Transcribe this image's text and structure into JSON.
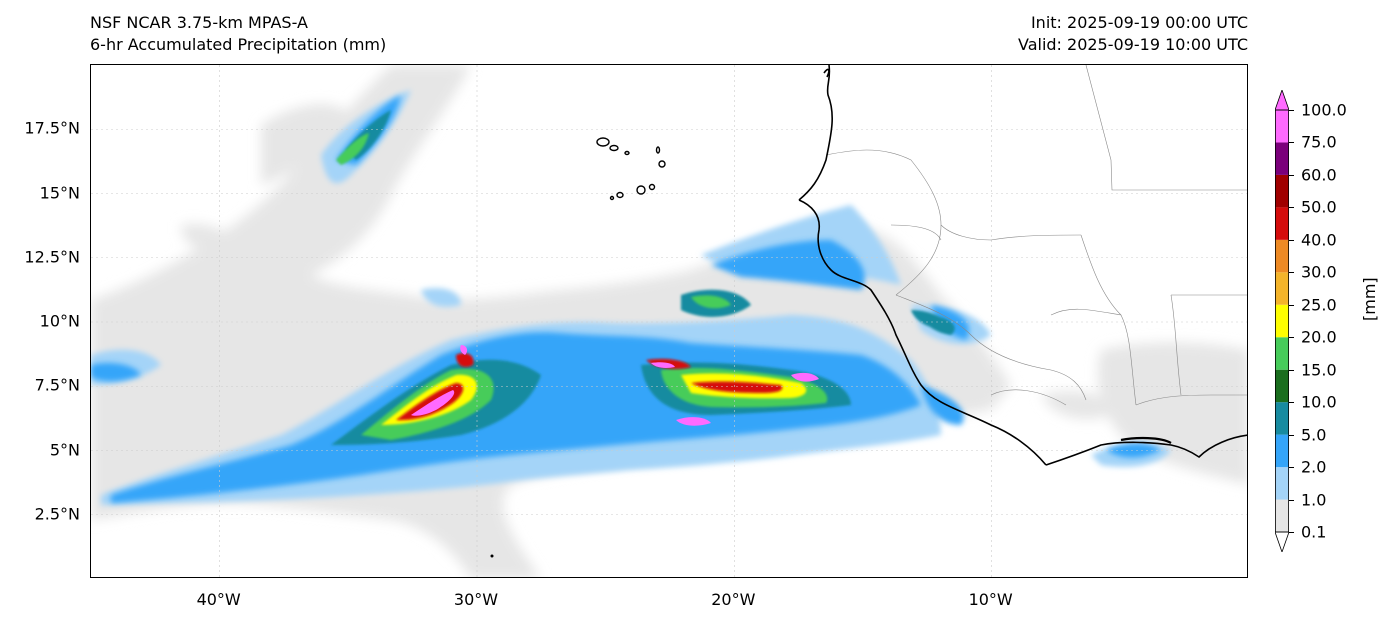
{
  "header": {
    "title_line1": "NSF NCAR 3.75-km MPAS-A",
    "title_line2": "6-hr Accumulated Precipitation (mm)",
    "init": "Init: 2025-09-19 00:00 UTC",
    "valid": "Valid: 2025-09-19 10:00 UTC"
  },
  "map": {
    "lon_range": [
      -45,
      0
    ],
    "lat_range": [
      0,
      20
    ],
    "lat_ticks": [
      {
        "value": 17.5,
        "label": "17.5°N"
      },
      {
        "value": 15,
        "label": "15°N"
      },
      {
        "value": 12.5,
        "label": "12.5°N"
      },
      {
        "value": 10,
        "label": "10°N"
      },
      {
        "value": 7.5,
        "label": "7.5°N"
      },
      {
        "value": 5,
        "label": "5°N"
      },
      {
        "value": 2.5,
        "label": "2.5°N"
      }
    ],
    "lon_ticks": [
      {
        "value": -40,
        "label": "40°W"
      },
      {
        "value": -30,
        "label": "30°W"
      },
      {
        "value": -20,
        "label": "20°W"
      },
      {
        "value": -10,
        "label": "10°W"
      }
    ],
    "grid": true
  },
  "colorbar": {
    "unit": "[mm]",
    "levels": [
      "0.1",
      "1.0",
      "2.0",
      "5.0",
      "10.0",
      "15.0",
      "20.0",
      "25.0",
      "30.0",
      "40.0",
      "50.0",
      "60.0",
      "75.0",
      "100.0"
    ],
    "colors": [
      "#e6e6e6",
      "#a4d4f8",
      "#34a5f9",
      "#178ba0",
      "#1a6e1e",
      "#46cc5a",
      "#ffff00",
      "#f4b42a",
      "#ee8a24",
      "#d50c0c",
      "#a00000",
      "#7b007b",
      "#ff6aff"
    ]
  }
}
